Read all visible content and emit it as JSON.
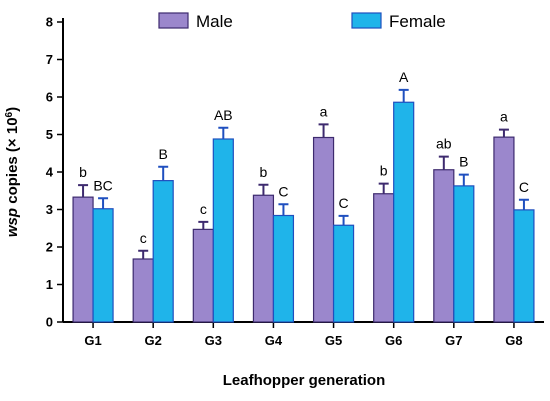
{
  "chart_data": {
    "type": "bar",
    "categories": [
      "G1",
      "G2",
      "G3",
      "G4",
      "G5",
      "G6",
      "G7",
      "G8"
    ],
    "series": [
      {
        "name": "Male",
        "color": "#9b87cc",
        "edge_color": "#3d2a6e",
        "error_color": "#3d2a6e",
        "values": [
          3.33,
          1.68,
          2.47,
          3.38,
          4.92,
          3.42,
          4.06,
          4.93
        ],
        "errors": [
          0.32,
          0.22,
          0.2,
          0.28,
          0.35,
          0.27,
          0.35,
          0.2
        ],
        "labels": [
          "b",
          "c",
          "c",
          "b",
          "a",
          "b",
          "ab",
          "a"
        ]
      },
      {
        "name": "Female",
        "color": "#1fb4ea",
        "edge_color": "#1f4fbf",
        "error_color": "#1f4fbf",
        "values": [
          3.02,
          3.77,
          4.88,
          2.84,
          2.58,
          5.86,
          3.63,
          2.99
        ],
        "errors": [
          0.28,
          0.37,
          0.3,
          0.3,
          0.25,
          0.33,
          0.3,
          0.27
        ],
        "labels": [
          "BC",
          "B",
          "AB",
          "C",
          "C",
          "A",
          "B",
          "C"
        ]
      }
    ],
    "xlabel": "Leafhopper generation",
    "ylabel": {
      "italic": "wsp",
      "text": " copies (× 10",
      "superscript": "6",
      "close": ")"
    },
    "ylim": [
      0,
      8
    ],
    "yticks": [
      "0",
      "1",
      "2",
      "3",
      "4",
      "5",
      "6",
      "7",
      "8"
    ],
    "grid": false,
    "legend_position": "top"
  }
}
